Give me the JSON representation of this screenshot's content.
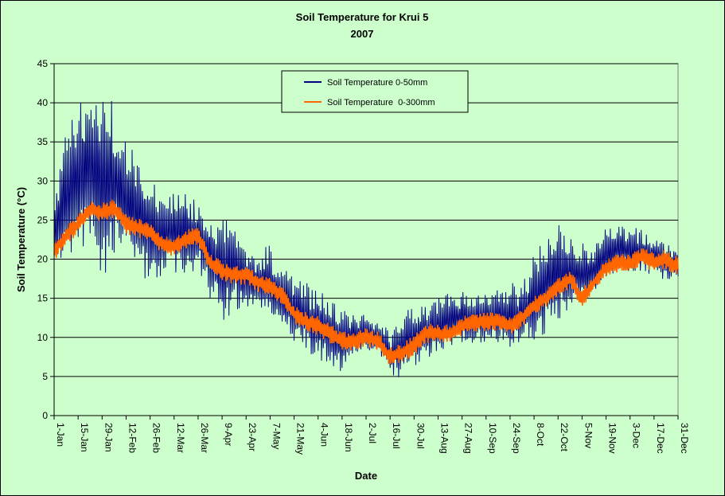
{
  "chart_data": {
    "type": "line",
    "title": "Soil Temperature for Krui 5",
    "subtitle": "2007",
    "xlabel": "Date",
    "ylabel": "Soil Temperature (°C)",
    "ylim": [
      0,
      45
    ],
    "yticks": [
      "0",
      "5",
      "10",
      "15",
      "20",
      "25",
      "30",
      "35",
      "40",
      "45"
    ],
    "xlim": [
      "1-Jan",
      "31-Dec"
    ],
    "xticks": [
      "1-Jan",
      "15-Jan",
      "29-Jan",
      "12-Feb",
      "26-Feb",
      "12-Mar",
      "26-Mar",
      "9-Apr",
      "23-Apr",
      "7-May",
      "21-May",
      "4-Jun",
      "18-Jun",
      "2-Jul",
      "16-Jul",
      "30-Jul",
      "13-Aug",
      "27-Aug",
      "10-Sep",
      "24-Sep",
      "8-Oct",
      "22-Oct",
      "5-Nov",
      "19-Nov",
      "3-Dec",
      "17-Dec",
      "31-Dec"
    ],
    "grid": {
      "horizontal": true,
      "vertical": false
    },
    "legend_position": "top-center",
    "series": [
      {
        "name": "Soil Temperature 0-50mm",
        "color": "#000080",
        "profile": {
          "dates": [
            "1-Jan",
            "8-Jan",
            "15-Jan",
            "22-Jan",
            "29-Jan",
            "5-Feb",
            "12-Feb",
            "19-Feb",
            "26-Feb",
            "5-Mar",
            "12-Mar",
            "19-Mar",
            "26-Mar",
            "2-Apr",
            "9-Apr",
            "16-Apr",
            "23-Apr",
            "30-Apr",
            "7-May",
            "14-May",
            "21-May",
            "28-May",
            "4-Jun",
            "11-Jun",
            "18-Jun",
            "25-Jun",
            "2-Jul",
            "9-Jul",
            "16-Jul",
            "23-Jul",
            "30-Jul",
            "6-Aug",
            "13-Aug",
            "20-Aug",
            "27-Aug",
            "3-Sep",
            "10-Sep",
            "17-Sep",
            "24-Sep",
            "1-Oct",
            "8-Oct",
            "15-Oct",
            "22-Oct",
            "29-Oct",
            "5-Nov",
            "12-Nov",
            "19-Nov",
            "26-Nov",
            "3-Dec",
            "10-Dec",
            "17-Dec",
            "24-Dec",
            "31-Dec"
          ],
          "min": [
            18,
            20,
            21,
            22,
            18,
            19,
            20,
            18,
            17,
            18,
            18,
            17,
            19,
            15,
            12,
            13,
            13,
            13,
            12,
            10,
            9,
            8,
            7,
            6,
            5,
            8,
            8,
            8,
            4,
            5,
            6,
            7,
            7,
            9,
            9,
            9,
            9,
            9,
            8,
            9,
            9,
            10,
            12,
            13,
            14,
            15,
            17,
            18,
            18,
            18,
            18,
            17,
            17
          ],
          "max": [
            28,
            37,
            40,
            42,
            41,
            42,
            35,
            34,
            31,
            28,
            29,
            30,
            27,
            26,
            25,
            25,
            22,
            21,
            22,
            20,
            18,
            17,
            16,
            15,
            14,
            13,
            13,
            12,
            11,
            13,
            14,
            15,
            15,
            16,
            16,
            15,
            16,
            16,
            17,
            17,
            21,
            24,
            25,
            23,
            22,
            22,
            24,
            25,
            24,
            24,
            23,
            22,
            22
          ]
        }
      },
      {
        "name": "Soil Temperature  0-300mm",
        "color": "#ff6600",
        "profile": {
          "dates": [
            "1-Jan",
            "8-Jan",
            "15-Jan",
            "22-Jan",
            "29-Jan",
            "5-Feb",
            "12-Feb",
            "19-Feb",
            "26-Feb",
            "5-Mar",
            "12-Mar",
            "19-Mar",
            "26-Mar",
            "2-Apr",
            "9-Apr",
            "16-Apr",
            "23-Apr",
            "30-Apr",
            "7-May",
            "14-May",
            "21-May",
            "28-May",
            "4-Jun",
            "11-Jun",
            "18-Jun",
            "25-Jun",
            "2-Jul",
            "9-Jul",
            "16-Jul",
            "23-Jul",
            "30-Jul",
            "6-Aug",
            "13-Aug",
            "20-Aug",
            "27-Aug",
            "3-Sep",
            "10-Sep",
            "17-Sep",
            "24-Sep",
            "1-Oct",
            "8-Oct",
            "15-Oct",
            "22-Oct",
            "29-Oct",
            "5-Nov",
            "12-Nov",
            "19-Nov",
            "26-Nov",
            "3-Dec",
            "10-Dec",
            "17-Dec",
            "24-Dec",
            "31-Dec"
          ],
          "values": [
            21,
            23,
            24.5,
            26.5,
            26,
            26.5,
            24.5,
            24,
            23.5,
            22,
            21.5,
            22.5,
            23,
            19.5,
            18.5,
            18,
            18,
            17,
            16.5,
            15.5,
            13,
            12,
            11.5,
            10.5,
            9.5,
            9.5,
            10,
            9.5,
            7.5,
            8,
            9,
            10.5,
            10.5,
            10.5,
            11.5,
            12,
            12,
            12,
            11.5,
            12.5,
            14,
            15,
            16.5,
            17.5,
            15,
            17,
            19,
            19.5,
            19.5,
            20.5,
            19.5,
            20,
            19
          ]
        }
      }
    ]
  }
}
